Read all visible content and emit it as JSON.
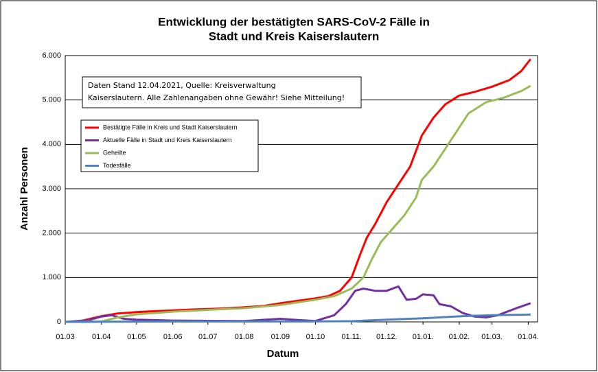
{
  "chart_data": {
    "type": "line",
    "title": [
      "Entwicklung der bestätigten SARS-CoV-2 Fälle in",
      "Stadt und Kreis Kaiserslautern"
    ],
    "annotation": [
      "Daten Stand 12.04.2021, Quelle: Kreisverwaltung",
      "Kaiserslautern. Alle Zahlenangaben ohne Gewähr! Siehe Mitteilung!"
    ],
    "xlabel": "Datum",
    "ylabel": "Anzahl Personen",
    "xlim": [
      0,
      404
    ],
    "ylim": [
      0,
      6000
    ],
    "grid": true,
    "legend": "upper-left",
    "xticks": [
      {
        "value": 0,
        "label": "01.03"
      },
      {
        "value": 31,
        "label": "01.04"
      },
      {
        "value": 61,
        "label": "01.05"
      },
      {
        "value": 92,
        "label": "01.06"
      },
      {
        "value": 122,
        "label": "01.07"
      },
      {
        "value": 153,
        "label": "01.08"
      },
      {
        "value": 184,
        "label": "01.09"
      },
      {
        "value": 214,
        "label": "01.10"
      },
      {
        "value": 245,
        "label": "01.11."
      },
      {
        "value": 275,
        "label": "01.12."
      },
      {
        "value": 306,
        "label": "01.01."
      },
      {
        "value": 337,
        "label": "01.02."
      },
      {
        "value": 365,
        "label": "01.03."
      },
      {
        "value": 396,
        "label": "01.04."
      }
    ],
    "yticks": [
      0,
      {
        "value": 1000,
        "label": "1.000"
      },
      {
        "value": 2000,
        "label": "2.000"
      },
      {
        "value": 3000,
        "label": "3.000"
      },
      {
        "value": 4000,
        "label": "4.000"
      },
      {
        "value": 5000,
        "label": "5.000"
      },
      {
        "value": 6000,
        "label": "6.000"
      }
    ],
    "series": [
      {
        "name": "Bestätigte Fälle in Kreis und Stadt Kaiserslautern",
        "color": "#ff0000",
        "x": [
          0,
          10,
          20,
          31,
          45,
          61,
          75,
          92,
          110,
          122,
          140,
          153,
          170,
          184,
          200,
          214,
          225,
          235,
          245,
          252,
          258,
          265,
          275,
          285,
          295,
          305,
          315,
          325,
          337,
          350,
          365,
          380,
          390,
          398
        ],
        "values": [
          0,
          0,
          60,
          130,
          190,
          220,
          240,
          260,
          280,
          290,
          310,
          330,
          360,
          420,
          480,
          530,
          580,
          700,
          1000,
          1500,
          1900,
          2200,
          2700,
          3100,
          3500,
          4200,
          4600,
          4900,
          5100,
          5180,
          5300,
          5450,
          5650,
          5920
        ]
      },
      {
        "name": "Aktuelle Fälle in Stadt und Kreis Kaiserslautern",
        "color": "#7030a0",
        "x": [
          0,
          20,
          31,
          40,
          50,
          61,
          92,
          153,
          184,
          200,
          214,
          230,
          240,
          248,
          255,
          265,
          275,
          285,
          292,
          300,
          306,
          315,
          320,
          330,
          340,
          350,
          360,
          370,
          385,
          398
        ],
        "values": [
          0,
          40,
          120,
          150,
          70,
          50,
          30,
          20,
          70,
          40,
          20,
          150,
          400,
          700,
          750,
          700,
          700,
          800,
          500,
          520,
          620,
          600,
          400,
          350,
          200,
          120,
          100,
          150,
          300,
          420
        ]
      },
      {
        "name": "Geheilte",
        "color": "#9bbb59",
        "x": [
          0,
          31,
          45,
          61,
          92,
          122,
          153,
          184,
          214,
          230,
          245,
          255,
          262,
          270,
          280,
          290,
          300,
          305,
          315,
          325,
          335,
          345,
          360,
          375,
          390,
          398
        ],
        "values": [
          0,
          10,
          100,
          170,
          230,
          270,
          310,
          380,
          500,
          580,
          750,
          1000,
          1400,
          1800,
          2100,
          2400,
          2800,
          3200,
          3500,
          3900,
          4300,
          4700,
          4950,
          5050,
          5200,
          5320
        ]
      },
      {
        "name": "Todesfälle",
        "color": "#4f81bd",
        "x": [
          0,
          31,
          100,
          200,
          245,
          275,
          306,
          340,
          365,
          398
        ],
        "values": [
          0,
          5,
          10,
          10,
          15,
          50,
          80,
          130,
          150,
          165
        ]
      }
    ]
  }
}
